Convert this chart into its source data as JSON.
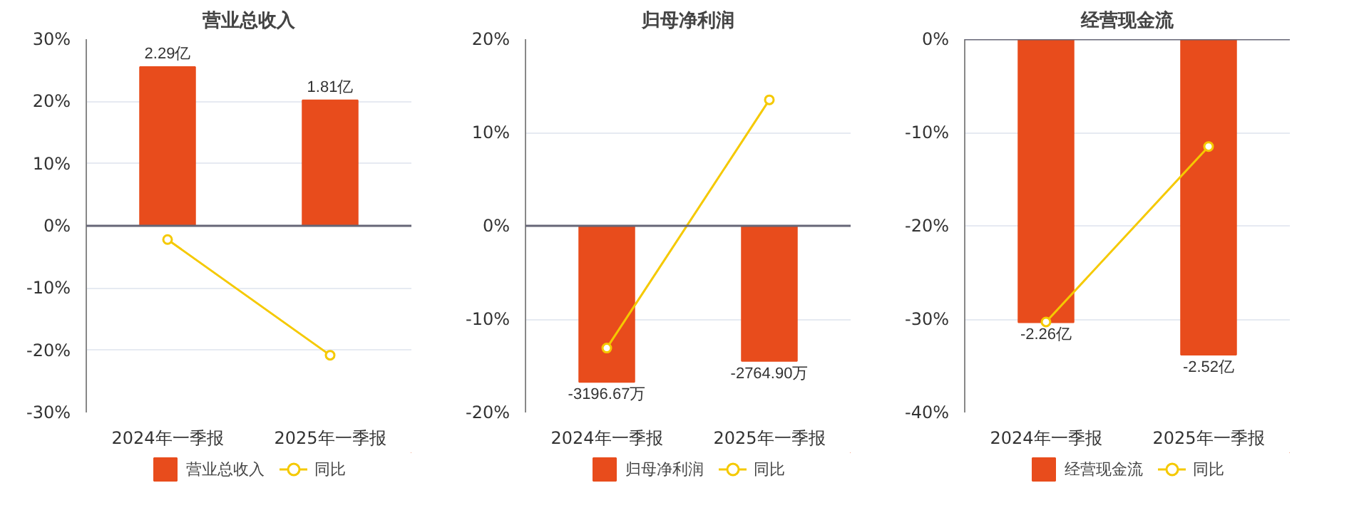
{
  "chart_data": [
    {
      "type": "bar",
      "title": "营业总收入",
      "categories": [
        "2024年一季报",
        "2025年一季报"
      ],
      "series": [
        {
          "name": "营业总收入",
          "color": "#e84c1c",
          "values": [
            2.29,
            1.81
          ],
          "axis": "y2",
          "value_labels": [
            "2.29亿",
            "1.81亿"
          ]
        },
        {
          "name": "同比",
          "type": "line",
          "color": "#f5c900",
          "values": [
            -2.2,
            -20.8
          ],
          "marker": "circle"
        }
      ],
      "ylim": [
        -30,
        30
      ],
      "yticks": [
        {
          "value": -30,
          "label": "-30%"
        },
        {
          "value": -20,
          "label": "-20%"
        },
        {
          "value": -10,
          "label": "-10%"
        },
        {
          "value": 0,
          "label": "0%"
        },
        {
          "value": 10,
          "label": "10%"
        },
        {
          "value": 20,
          "label": "20%"
        },
        {
          "value": 30,
          "label": "30%"
        }
      ],
      "y2lim": [
        -2.69,
        2.69
      ],
      "grid": "y",
      "legend": "bottom"
    },
    {
      "type": "bar",
      "title": "归母净利润",
      "categories": [
        "2024年一季报",
        "2025年一季报"
      ],
      "series": [
        {
          "name": "归母净利润",
          "color": "#e84c1c",
          "values": [
            -3196.67,
            -2764.9
          ],
          "axis": "y2",
          "value_labels": [
            "-3196.67万",
            "-2764.90万"
          ]
        },
        {
          "name": "同比",
          "type": "line",
          "color": "#f5c900",
          "values": [
            -13.1,
            13.5
          ],
          "marker": "circle"
        }
      ],
      "ylim": [
        -20,
        20
      ],
      "yticks": [
        {
          "value": -20,
          "label": "-20%"
        },
        {
          "value": -10,
          "label": "-10%"
        },
        {
          "value": 0,
          "label": "0%"
        },
        {
          "value": 10,
          "label": "10%"
        },
        {
          "value": 20,
          "label": "20%"
        }
      ],
      "y2lim": [
        -3820,
        3820
      ],
      "grid": "y",
      "legend": "bottom"
    },
    {
      "type": "bar",
      "title": "经营现金流",
      "categories": [
        "2024年一季报",
        "2025年一季报"
      ],
      "series": [
        {
          "name": "经营现金流",
          "color": "#e84c1c",
          "values": [
            -2.26,
            -2.52
          ],
          "axis": "y2",
          "value_labels": [
            "-2.26亿",
            "-2.52亿"
          ]
        },
        {
          "name": "同比",
          "type": "line",
          "color": "#f5c900",
          "values": [
            -30.3,
            -11.5
          ],
          "marker": "circle"
        }
      ],
      "ylim": [
        -40,
        0
      ],
      "yticks": [
        {
          "value": -40,
          "label": "-40%"
        },
        {
          "value": -30,
          "label": "-30%"
        },
        {
          "value": -20,
          "label": "-20%"
        },
        {
          "value": -10,
          "label": "-10%"
        },
        {
          "value": 0,
          "label": "0%"
        }
      ],
      "y2lim": [
        -2.98,
        0
      ],
      "grid": "y",
      "legend": "bottom"
    }
  ]
}
